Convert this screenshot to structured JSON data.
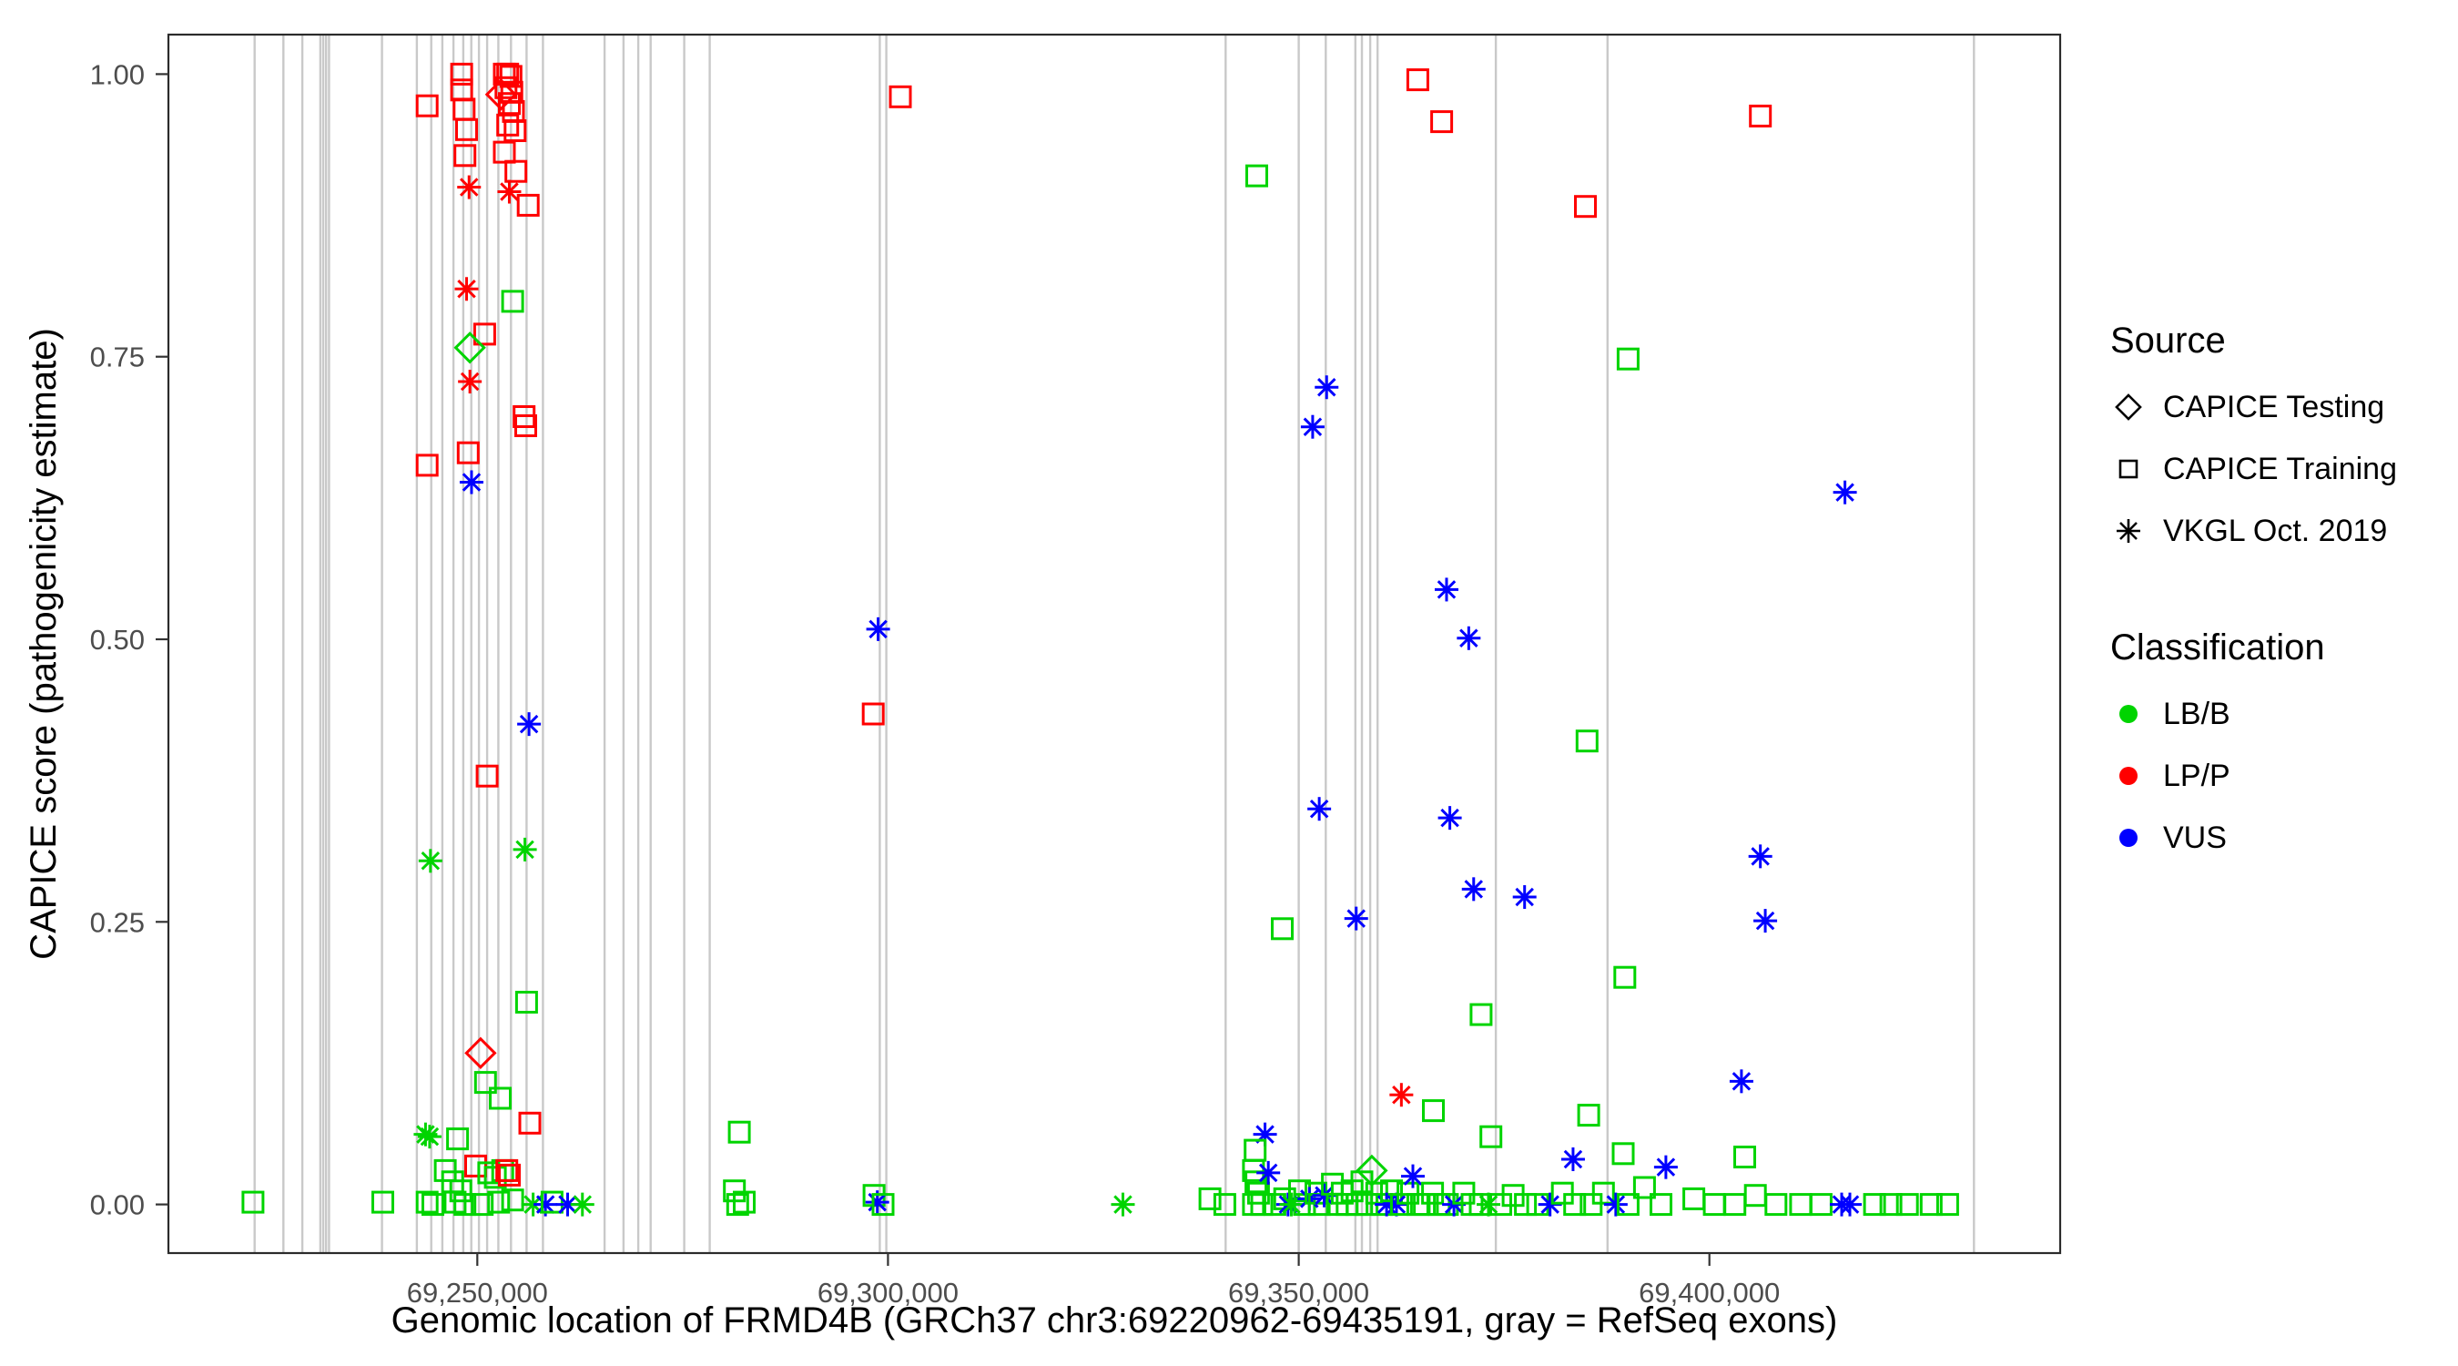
{
  "colors": {
    "lbb": "#00D400",
    "lpp": "#FF0000",
    "vus": "#0000FF",
    "exon": "#C9C9C9",
    "panel_border": "#2B2B2B",
    "tick_text": "#4D4D4D",
    "glyph": "#000000"
  },
  "legend": {
    "source": {
      "title": "Source",
      "items": [
        {
          "label": "CAPICE Testing",
          "shape": "diamond"
        },
        {
          "label": "CAPICE Training",
          "shape": "square"
        },
        {
          "label": "VKGL Oct. 2019",
          "shape": "asterisk"
        }
      ]
    },
    "classification": {
      "title": "Classification",
      "items": [
        {
          "label": "LB/B",
          "color_key": "lbb"
        },
        {
          "label": "LP/P",
          "color_key": "lpp"
        },
        {
          "label": "VUS",
          "color_key": "vus"
        }
      ]
    }
  },
  "chart_data": {
    "type": "scatter",
    "title": "",
    "xlabel": "Genomic location of FRMD4B (GRCh37 chr3:69220962-69435191, gray = RefSeq exons)",
    "ylabel": "CAPICE score (pathogenicity estimate)",
    "xlim": [
      69212400,
      69442700
    ],
    "ylim": [
      -0.043,
      1.035
    ],
    "x_ticks": [
      {
        "value": 69250000,
        "label": "69,250,000"
      },
      {
        "value": 69300000,
        "label": "69,300,000"
      },
      {
        "value": 69350000,
        "label": "69,350,000"
      },
      {
        "value": 69400000,
        "label": "69,400,000"
      }
    ],
    "y_ticks": [
      {
        "value": 0.0,
        "label": "0.00"
      },
      {
        "value": 0.25,
        "label": "0.25"
      },
      {
        "value": 0.5,
        "label": "0.50"
      },
      {
        "value": 0.75,
        "label": "0.75"
      },
      {
        "value": 1.0,
        "label": "1.00"
      }
    ],
    "grid": false,
    "legend_position": "right",
    "source_shapes": {
      "testing": "diamond",
      "training": "square",
      "vkgl": "asterisk"
    },
    "exon_note": "gray vertical lines = RefSeq exons",
    "exons_x": [
      69222900,
      69226400,
      69228700,
      69230900,
      69231250,
      69231600,
      69231950,
      69238400,
      69242650,
      69244400,
      69245750,
      69247100,
      69248300,
      69249270,
      69250200,
      69251200,
      69252560,
      69254100,
      69256000,
      69258000,
      69265500,
      69267800,
      69269600,
      69271100,
      69275200,
      69278300,
      69299000,
      69299800,
      69341100,
      69350000,
      69353300,
      69356900,
      69357700,
      69358700,
      69359600,
      69374000,
      69387600,
      69432200
    ],
    "points_format": [
      "x",
      "y",
      "source",
      "classification"
    ],
    "points": [
      [
        69243900,
        0.972,
        "training",
        "lpp"
      ],
      [
        69248100,
        1.0,
        "training",
        "lpp"
      ],
      [
        69248100,
        0.986,
        "training",
        "lpp"
      ],
      [
        69248400,
        0.969,
        "training",
        "lpp"
      ],
      [
        69248700,
        0.951,
        "training",
        "lpp"
      ],
      [
        69248500,
        0.928,
        "training",
        "lpp"
      ],
      [
        69252900,
        0.982,
        "testing",
        "lpp"
      ],
      [
        69253300,
        1.0,
        "training",
        "lpp"
      ],
      [
        69253700,
        1.0,
        "training",
        "lpp"
      ],
      [
        69254100,
        0.998,
        "training",
        "lpp"
      ],
      [
        69253500,
        0.988,
        "training",
        "lpp"
      ],
      [
        69254200,
        0.984,
        "training",
        "lpp"
      ],
      [
        69253900,
        0.974,
        "training",
        "lpp"
      ],
      [
        69254400,
        0.967,
        "training",
        "lpp"
      ],
      [
        69253700,
        0.955,
        "training",
        "lpp"
      ],
      [
        69254600,
        0.95,
        "training",
        "lpp"
      ],
      [
        69253300,
        0.931,
        "training",
        "lpp"
      ],
      [
        69254700,
        0.914,
        "training",
        "lpp"
      ],
      [
        69256200,
        0.884,
        "training",
        "lpp"
      ],
      [
        69249000,
        0.9,
        "vkgl",
        "lpp"
      ],
      [
        69253900,
        0.896,
        "vkgl",
        "lpp"
      ],
      [
        69248700,
        0.81,
        "vkgl",
        "lpp"
      ],
      [
        69254300,
        0.799,
        "training",
        "lbb"
      ],
      [
        69250900,
        0.77,
        "training",
        "lpp"
      ],
      [
        69249100,
        0.758,
        "testing",
        "lbb"
      ],
      [
        69249100,
        0.728,
        "vkgl",
        "lpp"
      ],
      [
        69255700,
        0.697,
        "training",
        "lpp"
      ],
      [
        69255900,
        0.689,
        "training",
        "lpp"
      ],
      [
        69248900,
        0.665,
        "training",
        "lpp"
      ],
      [
        69243900,
        0.654,
        "training",
        "lpp"
      ],
      [
        69249300,
        0.639,
        "vkgl",
        "vus"
      ],
      [
        69256300,
        0.425,
        "vkgl",
        "vus"
      ],
      [
        69251200,
        0.379,
        "training",
        "lpp"
      ],
      [
        69244300,
        0.304,
        "vkgl",
        "lbb"
      ],
      [
        69255800,
        0.314,
        "vkgl",
        "lbb"
      ],
      [
        69256000,
        0.179,
        "training",
        "lbb"
      ],
      [
        69250400,
        0.134,
        "testing",
        "lpp"
      ],
      [
        69251000,
        0.108,
        "training",
        "lbb"
      ],
      [
        69252800,
        0.094,
        "training",
        "lbb"
      ],
      [
        69256400,
        0.072,
        "training",
        "lpp"
      ],
      [
        69222700,
        0.002,
        "training",
        "lbb"
      ],
      [
        69238500,
        0.002,
        "training",
        "lbb"
      ],
      [
        69243700,
        0.062,
        "vkgl",
        "lbb"
      ],
      [
        69244200,
        0.06,
        "vkgl",
        "lbb"
      ],
      [
        69247600,
        0.058,
        "training",
        "lbb"
      ],
      [
        69243900,
        0.002,
        "training",
        "lbb"
      ],
      [
        69244600,
        0.0,
        "training",
        "lbb"
      ],
      [
        69246100,
        0.03,
        "training",
        "lbb"
      ],
      [
        69247000,
        0.02,
        "training",
        "lbb"
      ],
      [
        69247300,
        0.002,
        "training",
        "lbb"
      ],
      [
        69248000,
        0.012,
        "training",
        "lbb"
      ],
      [
        69248500,
        0.0,
        "training",
        "lbb"
      ],
      [
        69249800,
        0.034,
        "training",
        "lpp"
      ],
      [
        69250600,
        0.0,
        "training",
        "lbb"
      ],
      [
        69251400,
        0.028,
        "training",
        "lbb"
      ],
      [
        69252200,
        0.024,
        "training",
        "lbb"
      ],
      [
        69252600,
        0.002,
        "training",
        "lbb"
      ],
      [
        69253100,
        0.03,
        "training",
        "lbb"
      ],
      [
        69253600,
        0.03,
        "training",
        "lpp"
      ],
      [
        69253900,
        0.026,
        "training",
        "lpp"
      ],
      [
        69254300,
        0.004,
        "training",
        "lbb"
      ],
      [
        69256800,
        0.0,
        "vkgl",
        "lbb"
      ],
      [
        69258300,
        0.0,
        "vkgl",
        "vus"
      ],
      [
        69259100,
        0.002,
        "training",
        "lbb"
      ],
      [
        69261000,
        0.0,
        "vkgl",
        "vus"
      ],
      [
        69262800,
        0.0,
        "vkgl",
        "lbb"
      ],
      [
        69281900,
        0.064,
        "training",
        "lbb"
      ],
      [
        69281300,
        0.012,
        "training",
        "lbb"
      ],
      [
        69281700,
        0.0,
        "training",
        "lbb"
      ],
      [
        69282500,
        0.002,
        "training",
        "lbb"
      ],
      [
        69298200,
        0.434,
        "training",
        "lpp"
      ],
      [
        69298800,
        0.509,
        "vkgl",
        "vus"
      ],
      [
        69301500,
        0.98,
        "training",
        "lpp"
      ],
      [
        69298300,
        0.008,
        "training",
        "lbb"
      ],
      [
        69298700,
        0.002,
        "vkgl",
        "vus"
      ],
      [
        69299400,
        0.0,
        "training",
        "lbb"
      ],
      [
        69328600,
        0.0,
        "vkgl",
        "lbb"
      ],
      [
        69344900,
        0.91,
        "training",
        "lbb"
      ],
      [
        69364500,
        0.995,
        "training",
        "lpp"
      ],
      [
        69367400,
        0.958,
        "training",
        "lpp"
      ],
      [
        69406200,
        0.963,
        "training",
        "lpp"
      ],
      [
        69384900,
        0.883,
        "training",
        "lpp"
      ],
      [
        69390100,
        0.748,
        "training",
        "lbb"
      ],
      [
        69353400,
        0.723,
        "vkgl",
        "vus"
      ],
      [
        69351700,
        0.688,
        "vkgl",
        "vus"
      ],
      [
        69368000,
        0.544,
        "vkgl",
        "vus"
      ],
      [
        69370700,
        0.501,
        "vkgl",
        "vus"
      ],
      [
        69416500,
        0.63,
        "vkgl",
        "vus"
      ],
      [
        69385100,
        0.41,
        "training",
        "lbb"
      ],
      [
        69352500,
        0.35,
        "vkgl",
        "vus"
      ],
      [
        69368400,
        0.342,
        "vkgl",
        "vus"
      ],
      [
        69371300,
        0.279,
        "vkgl",
        "vus"
      ],
      [
        69377500,
        0.272,
        "vkgl",
        "vus"
      ],
      [
        69406200,
        0.308,
        "vkgl",
        "vus"
      ],
      [
        69357000,
        0.253,
        "vkgl",
        "vus"
      ],
      [
        69406800,
        0.251,
        "vkgl",
        "vus"
      ],
      [
        69348000,
        0.244,
        "training",
        "lbb"
      ],
      [
        69389700,
        0.201,
        "training",
        "lbb"
      ],
      [
        69372200,
        0.168,
        "training",
        "lbb"
      ],
      [
        69362500,
        0.097,
        "vkgl",
        "lpp"
      ],
      [
        69403900,
        0.109,
        "vkgl",
        "vus"
      ],
      [
        69366400,
        0.083,
        "training",
        "lbb"
      ],
      [
        69373400,
        0.06,
        "training",
        "lbb"
      ],
      [
        69385300,
        0.079,
        "training",
        "lbb"
      ],
      [
        69345900,
        0.062,
        "vkgl",
        "vus"
      ],
      [
        69383400,
        0.04,
        "vkgl",
        "vus"
      ],
      [
        69394700,
        0.033,
        "vkgl",
        "vus"
      ],
      [
        69389500,
        0.045,
        "training",
        "lbb"
      ],
      [
        69404300,
        0.042,
        "training",
        "lbb"
      ],
      [
        69339200,
        0.005,
        "training",
        "lbb"
      ],
      [
        69341000,
        0.0,
        "training",
        "lbb"
      ],
      [
        69344700,
        0.048,
        "training",
        "lbb"
      ],
      [
        69344500,
        0.03,
        "training",
        "lbb"
      ],
      [
        69344800,
        0.02,
        "training",
        "lbb"
      ],
      [
        69345100,
        0.01,
        "training",
        "lbb"
      ],
      [
        69344500,
        0.0,
        "training",
        "lbb"
      ],
      [
        69345500,
        0.0,
        "training",
        "lbb"
      ],
      [
        69346300,
        0.028,
        "vkgl",
        "vus"
      ],
      [
        69347100,
        0.0,
        "training",
        "lbb"
      ],
      [
        69348300,
        0.005,
        "training",
        "lbb"
      ],
      [
        69348700,
        0.0,
        "vkgl",
        "vus"
      ],
      [
        69349100,
        0.0,
        "vkgl",
        "lbb"
      ],
      [
        69350100,
        0.012,
        "training",
        "lbb"
      ],
      [
        69350700,
        0.0,
        "training",
        "lbb"
      ],
      [
        69351300,
        0.005,
        "vkgl",
        "vus"
      ],
      [
        69352100,
        0.01,
        "training",
        "lbb"
      ],
      [
        69352500,
        0.0,
        "training",
        "lbb"
      ],
      [
        69353100,
        0.008,
        "vkgl",
        "vus"
      ],
      [
        69354100,
        0.018,
        "training",
        "lbb"
      ],
      [
        69354700,
        0.0,
        "training",
        "lbb"
      ],
      [
        69355300,
        0.01,
        "training",
        "lbb"
      ],
      [
        69355900,
        0.0,
        "training",
        "lbb"
      ],
      [
        69356500,
        0.012,
        "training",
        "lbb"
      ],
      [
        69357100,
        0.0,
        "training",
        "lbb"
      ],
      [
        69357700,
        0.02,
        "training",
        "lbb"
      ],
      [
        69358300,
        0.0,
        "training",
        "lbb"
      ],
      [
        69358900,
        0.03,
        "testing",
        "lbb"
      ],
      [
        69359500,
        0.01,
        "training",
        "lbb"
      ],
      [
        69360100,
        0.0,
        "training",
        "lbb"
      ],
      [
        69360700,
        0.0,
        "vkgl",
        "vus"
      ],
      [
        69361300,
        0.012,
        "training",
        "lbb"
      ],
      [
        69361900,
        0.0,
        "vkgl",
        "vus"
      ],
      [
        69362500,
        0.0,
        "training",
        "lbb"
      ],
      [
        69363300,
        0.01,
        "training",
        "lbb"
      ],
      [
        69363900,
        0.025,
        "vkgl",
        "vus"
      ],
      [
        69364500,
        0.0,
        "training",
        "lbb"
      ],
      [
        69365300,
        0.0,
        "training",
        "lbb"
      ],
      [
        69366300,
        0.01,
        "training",
        "lbb"
      ],
      [
        69367100,
        0.0,
        "training",
        "lbb"
      ],
      [
        69368100,
        0.0,
        "training",
        "lbb"
      ],
      [
        69368900,
        0.0,
        "vkgl",
        "vus"
      ],
      [
        69370100,
        0.01,
        "training",
        "lbb"
      ],
      [
        69371100,
        0.0,
        "training",
        "lbb"
      ],
      [
        69372100,
        0.0,
        "training",
        "lbb"
      ],
      [
        69373100,
        0.0,
        "vkgl",
        "lbb"
      ],
      [
        69374600,
        0.0,
        "training",
        "lbb"
      ],
      [
        69376100,
        0.008,
        "training",
        "lbb"
      ],
      [
        69377600,
        0.0,
        "training",
        "lbb"
      ],
      [
        69379100,
        0.0,
        "training",
        "lbb"
      ],
      [
        69380600,
        0.0,
        "vkgl",
        "vus"
      ],
      [
        69382100,
        0.01,
        "training",
        "lbb"
      ],
      [
        69383600,
        0.0,
        "training",
        "lbb"
      ],
      [
        69385600,
        0.0,
        "training",
        "lbb"
      ],
      [
        69387100,
        0.01,
        "training",
        "lbb"
      ],
      [
        69388600,
        0.0,
        "vkgl",
        "vus"
      ],
      [
        69390100,
        0.0,
        "training",
        "lbb"
      ],
      [
        69392100,
        0.015,
        "training",
        "lbb"
      ],
      [
        69394100,
        0.0,
        "training",
        "lbb"
      ],
      [
        69398100,
        0.005,
        "training",
        "lbb"
      ],
      [
        69400600,
        0.0,
        "training",
        "lbb"
      ],
      [
        69403100,
        0.0,
        "training",
        "lbb"
      ],
      [
        69405600,
        0.008,
        "training",
        "lbb"
      ],
      [
        69408100,
        0.0,
        "training",
        "lbb"
      ],
      [
        69411100,
        0.0,
        "training",
        "lbb"
      ],
      [
        69413600,
        0.0,
        "training",
        "lbb"
      ],
      [
        69416100,
        0.0,
        "vkgl",
        "vus"
      ],
      [
        69417100,
        0.0,
        "vkgl",
        "vus"
      ],
      [
        69420100,
        0.0,
        "training",
        "lbb"
      ],
      [
        69422100,
        0.0,
        "training",
        "lbb"
      ],
      [
        69424100,
        0.0,
        "training",
        "lbb"
      ],
      [
        69427000,
        0.0,
        "training",
        "lbb"
      ],
      [
        69429000,
        0.0,
        "training",
        "lbb"
      ]
    ]
  }
}
